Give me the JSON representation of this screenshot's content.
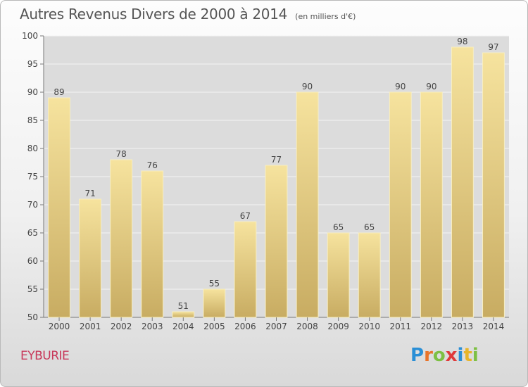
{
  "chart_data": {
    "type": "bar",
    "title": "Autres Revenus Divers de 2000 à 2014",
    "subtitle": "(en milliers d'€)",
    "categories": [
      "2000",
      "2001",
      "2002",
      "2003",
      "2004",
      "2005",
      "2006",
      "2007",
      "2008",
      "2009",
      "2010",
      "2011",
      "2012",
      "2013",
      "2014"
    ],
    "values": [
      89,
      71,
      78,
      76,
      51,
      55,
      67,
      77,
      90,
      65,
      65,
      90,
      90,
      98,
      97
    ],
    "ylim": [
      50,
      100
    ],
    "yticks": [
      50,
      55,
      60,
      65,
      70,
      75,
      80,
      85,
      90,
      95,
      100
    ],
    "grid": true,
    "bar_color_top": "#f6e39e",
    "bar_color_bottom": "#c8ac62"
  },
  "footer": {
    "commune": "EYBURIE",
    "logo_letters": [
      "P",
      "r",
      "o",
      "x",
      "i",
      "t",
      "i"
    ],
    "logo_colors": [
      "#2a8fd6",
      "#e8742a",
      "#7dc043",
      "#e03a3a",
      "#2a8fd6",
      "#e8b52a",
      "#7dc043"
    ]
  }
}
